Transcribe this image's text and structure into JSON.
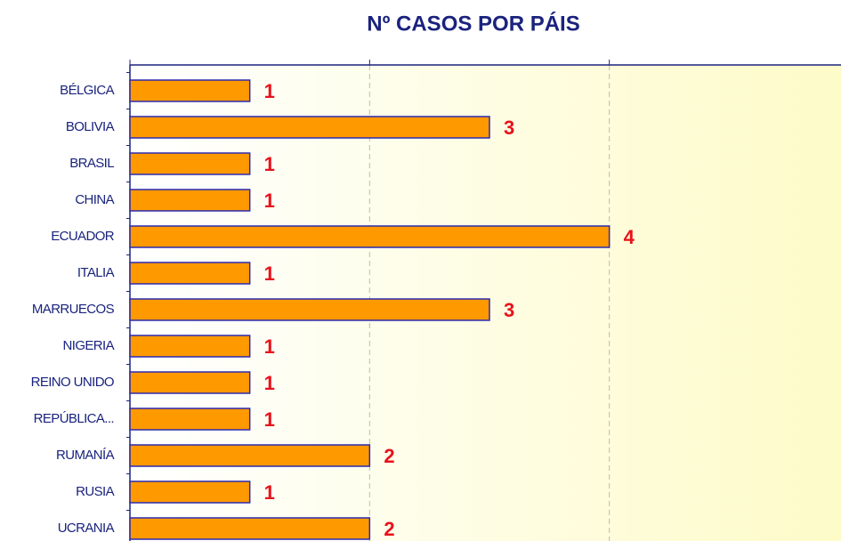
{
  "chart_data": {
    "type": "barh",
    "title": "Nº CASOS POR PÁIS",
    "categories": [
      "BÉLGICA",
      "BOLIVIA",
      "BRASIL",
      "CHINA",
      "ECUADOR",
      "ITALIA",
      "MARRUECOS",
      "NIGERIA",
      "REINO UNIDO",
      "REPÚBLICA...",
      "RUMANÍA",
      "RUSIA",
      "UCRANIA"
    ],
    "values": [
      1,
      3,
      1,
      1,
      4,
      1,
      3,
      1,
      1,
      1,
      2,
      1,
      2
    ],
    "color": "#ff9900",
    "edge_color": "#2b2bb0",
    "xlim": [
      0,
      6
    ],
    "xticks": [
      0,
      2,
      4
    ],
    "grid": true
  }
}
